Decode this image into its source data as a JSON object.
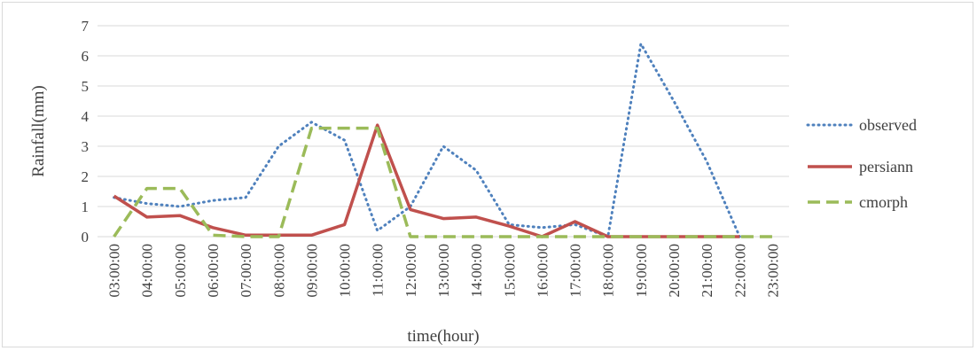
{
  "chart_data": {
    "type": "line",
    "title": "",
    "xlabel": "time(hour)",
    "ylabel": "Rainfall(mm)",
    "ylim": [
      0,
      7
    ],
    "yticks": [
      "0",
      "1",
      "2",
      "3",
      "4",
      "5",
      "6",
      "7"
    ],
    "grid": "horizontal",
    "legend_position": "right",
    "categories": [
      "03:00:00",
      "04:00:00",
      "05:00:00",
      "06:00:00",
      "07:00:00",
      "08:00:00",
      "09:00:00",
      "10:00:00",
      "11:00:00",
      "12:00:00",
      "13:00:00",
      "14:00:00",
      "15:00:00",
      "16:00:00",
      "17:00:00",
      "18:00:00",
      "19:00:00",
      "20:00:00",
      "21:00:00",
      "22:00:00",
      "23:00:00"
    ],
    "series": [
      {
        "name": "observed",
        "color": "#4f81bd",
        "style": "dotted",
        "values": [
          1.3,
          1.1,
          1.0,
          1.2,
          1.3,
          3.0,
          3.8,
          3.2,
          0.2,
          1.0,
          3.0,
          2.2,
          0.4,
          0.3,
          0.4,
          0.0,
          6.4,
          4.5,
          2.5,
          0.0,
          null
        ]
      },
      {
        "name": "persiann",
        "color": "#c0504d",
        "style": "solid",
        "values": [
          1.35,
          0.65,
          0.7,
          0.3,
          0.05,
          0.05,
          0.05,
          0.4,
          3.7,
          0.9,
          0.6,
          0.65,
          0.35,
          0.0,
          0.5,
          0.0,
          0.0,
          0.0,
          0.0,
          0.0,
          null
        ]
      },
      {
        "name": "cmorph",
        "color": "#9bbb59",
        "style": "dashed",
        "values": [
          0.0,
          1.6,
          1.6,
          0.05,
          0.0,
          0.0,
          3.6,
          3.6,
          3.6,
          0.0,
          0.0,
          0.0,
          0.0,
          0.0,
          0.0,
          0.0,
          0.0,
          0.0,
          0.0,
          0.0,
          0.0
        ]
      }
    ]
  }
}
